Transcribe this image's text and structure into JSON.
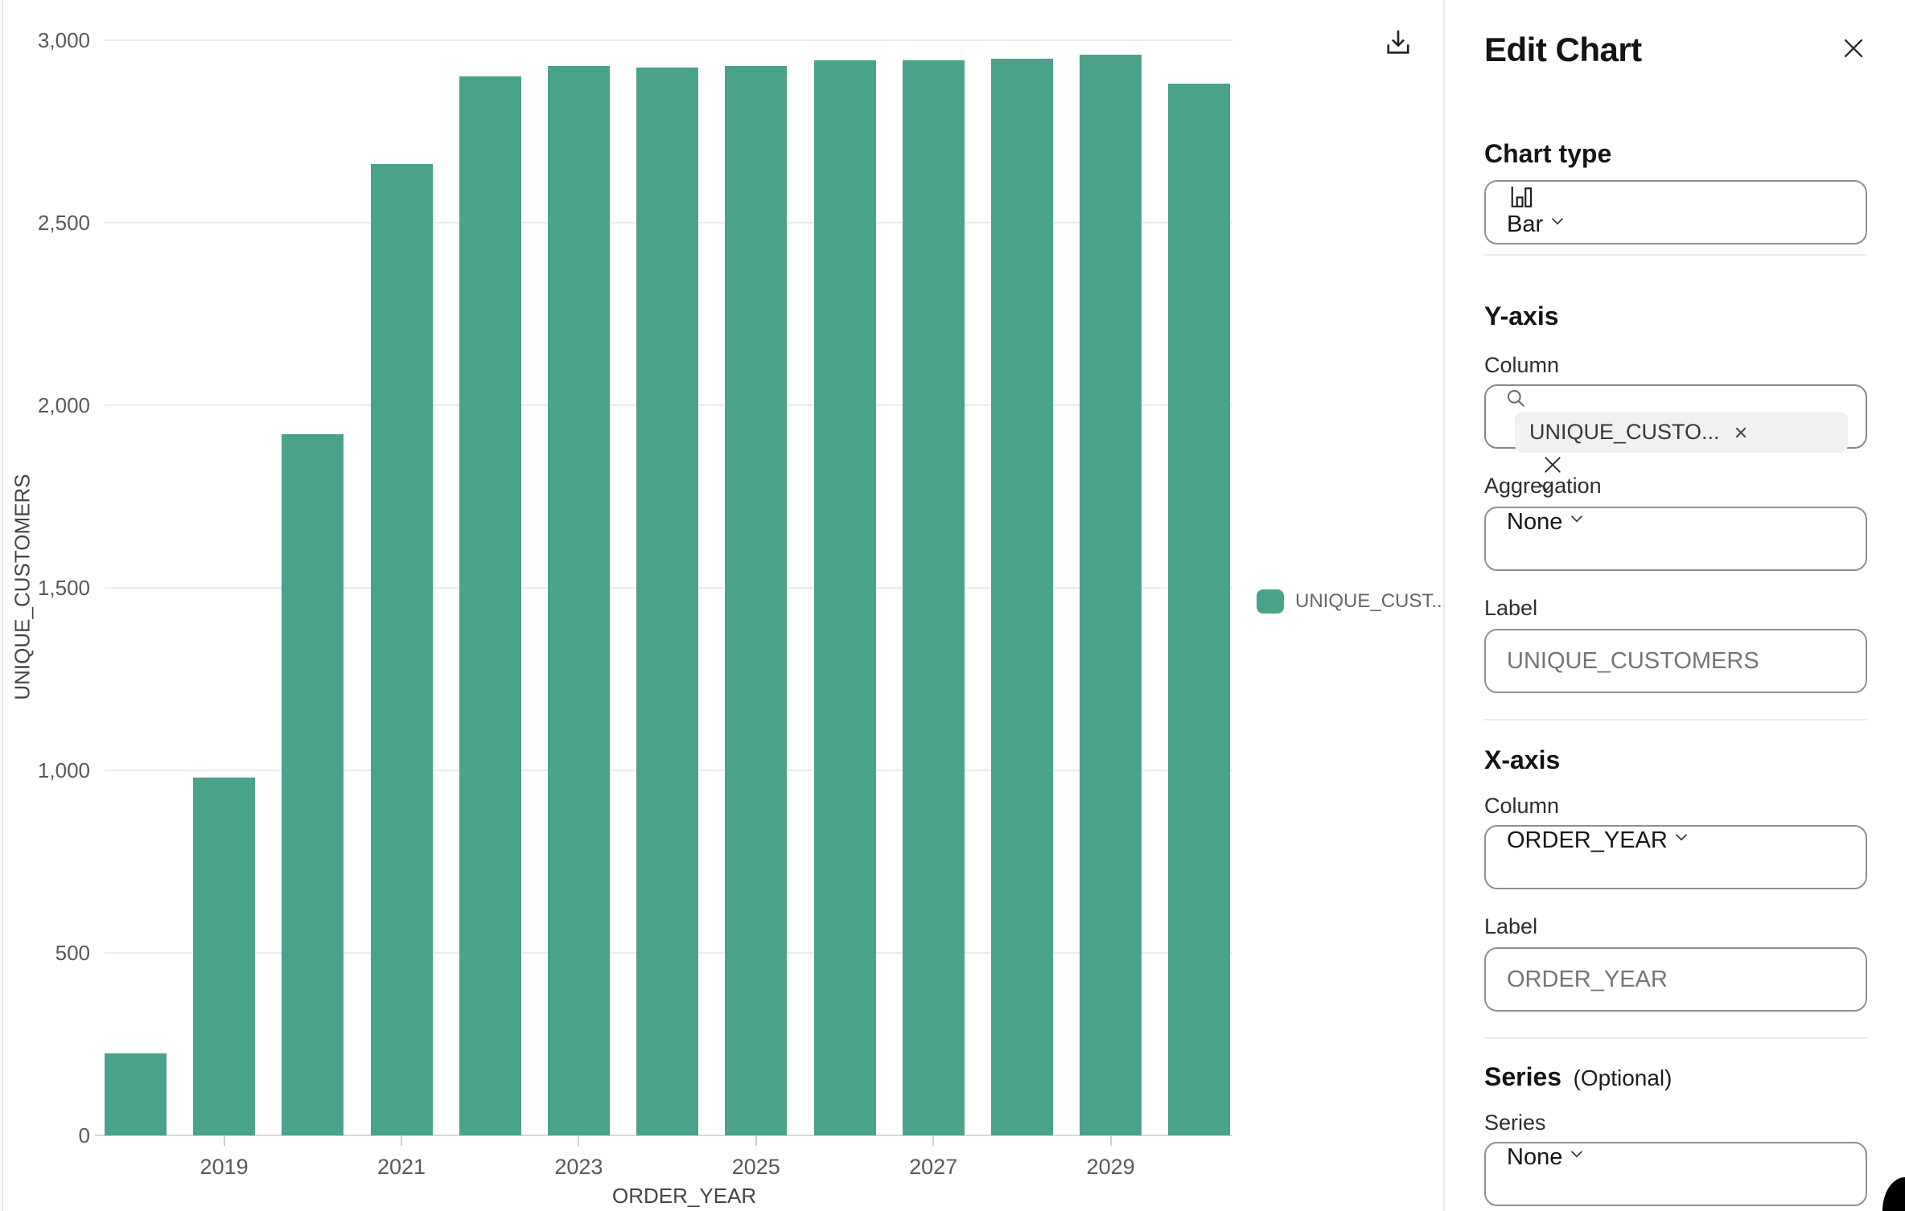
{
  "chart_data": {
    "type": "bar",
    "title": "",
    "categories": [
      "2018",
      "2019",
      "2020",
      "2021",
      "2022",
      "2023",
      "2024",
      "2025",
      "2026",
      "2027",
      "2028",
      "2029",
      "2030"
    ],
    "values": [
      225,
      980,
      1920,
      2660,
      2900,
      2930,
      2925,
      2930,
      2945,
      2945,
      2950,
      2960,
      2880
    ],
    "xlabel": "ORDER_YEAR",
    "ylabel": "UNIQUE_CUSTOMERS",
    "ylim": [
      0,
      3000
    ],
    "grid": true,
    "y_ticks": [
      {
        "value": 0,
        "label": "0"
      },
      {
        "value": 500,
        "label": "500"
      },
      {
        "value": 1000,
        "label": "1,000"
      },
      {
        "value": 1500,
        "label": "1,500"
      },
      {
        "value": 2000,
        "label": "2,000"
      },
      {
        "value": 2500,
        "label": "2,500"
      },
      {
        "value": 3000,
        "label": "3,000"
      }
    ],
    "x_tick_labels": [
      "2019",
      "2021",
      "2023",
      "2025",
      "2027",
      "2029"
    ],
    "x_tick_indices": [
      1,
      3,
      5,
      7,
      9,
      11
    ],
    "bar_color": "#4aa28b",
    "legend": {
      "label": "UNIQUE_CUST...",
      "color": "#4aa28b",
      "position": "right"
    }
  },
  "toolbar": {
    "download_icon": "tray-arrow-down"
  },
  "icons": {
    "download": "tray-arrow-down",
    "close": "x",
    "search": "magnifier",
    "chevron": "chevron-down",
    "chart_type": "bar-chart",
    "chip_remove": "x-small",
    "clear": "x"
  },
  "panel": {
    "title": "Edit Chart",
    "chart_type": {
      "heading": "Chart type",
      "value": "Bar"
    },
    "y_axis": {
      "heading": "Y-axis",
      "column_label": "Column",
      "column_chip": "UNIQUE_CUSTO...",
      "aggregation_label": "Aggregation",
      "aggregation_value": "None",
      "label_label": "Label",
      "label_placeholder": "UNIQUE_CUSTOMERS"
    },
    "x_axis": {
      "heading": "X-axis",
      "column_label": "Column",
      "column_value": "ORDER_YEAR",
      "label_label": "Label",
      "label_placeholder": "ORDER_YEAR"
    },
    "series": {
      "heading": "Series",
      "heading_suffix": "(Optional)",
      "series_label": "Series",
      "series_value": "None"
    }
  }
}
